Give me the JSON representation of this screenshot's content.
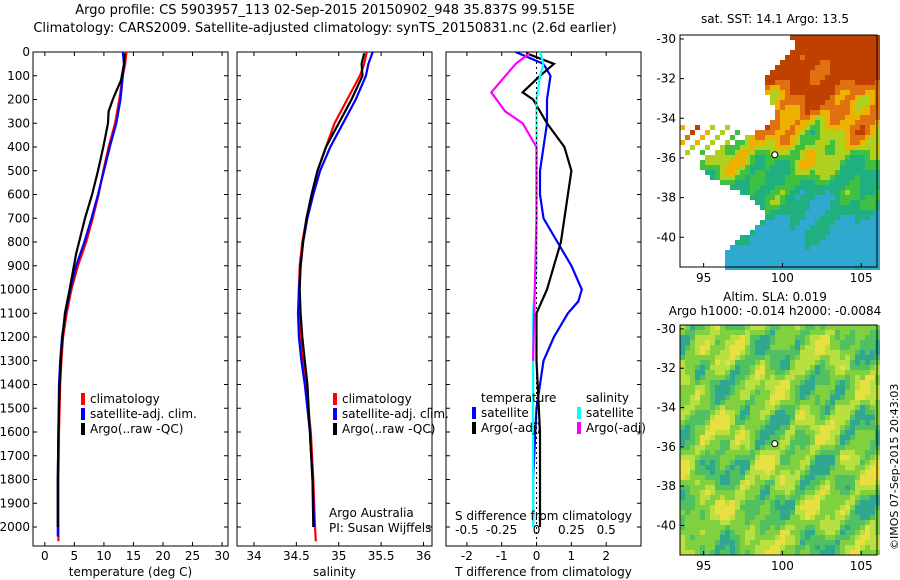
{
  "title": {
    "line1": "Argo profile: CS 5903957_113 02-Sep-2015 20150902_948 35.837S 99.515E",
    "line2": "Climatology: CARS2009. Satellite-adjusted climatology: synTS_20150831.nc (2.6d earlier)"
  },
  "credit": "©IMOS 07-Sep-2015 20:43:03",
  "colors": {
    "climatology": "#ff0000",
    "satellite": "#0000ff",
    "argo": "#000000",
    "sal_satellite": "#00ffff",
    "sal_argo": "#ff00ff"
  },
  "chart_data": [
    {
      "type": "line",
      "panel": "temperature",
      "xlabel": "temperature (deg C)",
      "xlim": [
        -2,
        31
      ],
      "xticks": [
        "0",
        "5",
        "10",
        "15",
        "20",
        "25",
        "30"
      ],
      "ylim": [
        0,
        2080
      ],
      "yticks": [
        "0",
        "100",
        "200",
        "300",
        "400",
        "500",
        "600",
        "700",
        "800",
        "900",
        "1000",
        "1100",
        "1200",
        "1300",
        "1400",
        "1500",
        "1600",
        "1700",
        "1800",
        "1900",
        "2000"
      ],
      "legend": [
        "climatology",
        "satellite-adj. clim.",
        "Argo(..raw -QC)"
      ],
      "series": [
        {
          "name": "climatology",
          "color": "#ff0000",
          "x": [
            13.8,
            13.6,
            13.2,
            12.6,
            11.9,
            10.8,
            9.9,
            9.1,
            8.1,
            7.0,
            5.6,
            4.5,
            3.7,
            3.1,
            2.8,
            2.6,
            2.5,
            2.4,
            2.3,
            2.3,
            2.3
          ],
          "y": [
            0,
            50,
            100,
            200,
            300,
            400,
            500,
            600,
            700,
            800,
            900,
            1000,
            1100,
            1200,
            1300,
            1400,
            1500,
            1600,
            1800,
            2000,
            2060
          ]
        },
        {
          "name": "satellite-adj. clim.",
          "color": "#0000ff",
          "x": [
            13.2,
            13.4,
            13.2,
            12.8,
            12.1,
            11.0,
            10.0,
            9.0,
            7.9,
            6.7,
            5.3,
            4.3,
            3.5,
            2.9,
            2.6,
            2.4,
            2.3,
            2.2,
            2.2,
            2.2
          ],
          "y": [
            0,
            50,
            100,
            200,
            300,
            400,
            500,
            600,
            700,
            800,
            900,
            1000,
            1100,
            1200,
            1300,
            1400,
            1600,
            1800,
            2000,
            2040
          ]
        },
        {
          "name": "Argo(..raw -QC)",
          "color": "#000000",
          "x": [
            13.5,
            13.4,
            12.9,
            12.0,
            11.5,
            10.8,
            10.7,
            9.9,
            9.0,
            8.0,
            6.8,
            5.3,
            4.2,
            3.4,
            2.8,
            2.5,
            2.3,
            2.2,
            2.2
          ],
          "y": [
            5,
            50,
            120,
            170,
            200,
            250,
            300,
            400,
            500,
            600,
            700,
            850,
            1000,
            1100,
            1250,
            1400,
            1600,
            1800,
            2000
          ]
        }
      ]
    },
    {
      "type": "line",
      "panel": "salinity",
      "xlabel": "salinity",
      "xlim": [
        33.8,
        36.1
      ],
      "xticks": [
        "34",
        "34.5",
        "35",
        "35.5",
        "36"
      ],
      "ylim": [
        0,
        2080
      ],
      "legend": [
        "climatology",
        "satellite-adj. clim.",
        "Argo(..raw -QC)"
      ],
      "annotation": [
        "Argo Australia",
        "PI: Susan Wijffels"
      ],
      "series": [
        {
          "name": "climatology",
          "color": "#ff0000",
          "x": [
            35.33,
            35.3,
            35.25,
            35.1,
            34.95,
            34.85,
            34.75,
            34.68,
            34.62,
            34.57,
            34.54,
            34.53,
            34.53,
            34.55,
            34.58,
            34.61,
            34.64,
            34.67,
            34.7,
            34.72,
            34.73
          ],
          "y": [
            0,
            50,
            100,
            200,
            300,
            400,
            500,
            600,
            700,
            800,
            900,
            1000,
            1100,
            1200,
            1300,
            1400,
            1500,
            1600,
            1800,
            2000,
            2060
          ]
        },
        {
          "name": "satellite-adj. clim.",
          "color": "#0000ff",
          "x": [
            35.4,
            35.35,
            35.32,
            35.2,
            35.05,
            34.9,
            34.78,
            34.7,
            34.63,
            34.58,
            34.55,
            34.53,
            34.52,
            34.53,
            34.56,
            34.6,
            34.63,
            34.66,
            34.69,
            34.71
          ],
          "y": [
            0,
            50,
            100,
            200,
            300,
            400,
            500,
            600,
            700,
            800,
            900,
            1000,
            1100,
            1200,
            1300,
            1400,
            1500,
            1600,
            1800,
            2000
          ]
        },
        {
          "name": "Argo(..raw -QC)",
          "color": "#000000",
          "x": [
            35.3,
            35.27,
            35.28,
            35.15,
            35.0,
            34.85,
            34.75,
            34.68,
            34.62,
            34.58,
            34.55,
            34.54,
            34.55,
            34.57,
            34.6,
            34.63,
            34.66,
            34.69,
            34.7
          ],
          "y": [
            5,
            50,
            100,
            200,
            300,
            400,
            500,
            600,
            700,
            800,
            900,
            1000,
            1100,
            1200,
            1300,
            1400,
            1600,
            1800,
            2000
          ]
        }
      ]
    },
    {
      "type": "line",
      "panel": "difference",
      "xlabel": "T difference from climatology",
      "xlabel_top": "S difference from climatology",
      "xlim": [
        -2.6,
        3.0
      ],
      "xticks": [
        "-2",
        "-1",
        "0",
        "1",
        "2"
      ],
      "xticks_top": [
        "-0.5",
        "-0.25",
        "0",
        "0.25",
        "0.5"
      ],
      "ylim": [
        0,
        2080
      ],
      "legend": {
        "temperature": [
          "satellite",
          "Argo(-adj)"
        ],
        "salinity": [
          "satellite",
          "Argo(-adj)"
        ]
      },
      "legend_headers": [
        "temperature",
        "salinity"
      ],
      "series": [
        {
          "name": "T satellite",
          "color": "#0000ff",
          "x": [
            -0.6,
            0.2,
            0.4,
            0.3,
            0.3,
            0.2,
            0.1,
            0.1,
            0.2,
            0.6,
            1.0,
            1.3,
            1.2,
            0.9,
            0.5,
            0.2,
            0.0,
            -0.1,
            -0.1
          ],
          "y": [
            0,
            50,
            100,
            200,
            300,
            400,
            500,
            600,
            700,
            800,
            900,
            1000,
            1050,
            1100,
            1200,
            1300,
            1500,
            1800,
            2000
          ]
        },
        {
          "name": "T Argo(-adj)",
          "color": "#000000",
          "x": [
            -0.3,
            0.5,
            0.1,
            -0.4,
            -0.1,
            0.3,
            0.8,
            1.0,
            0.9,
            0.8,
            0.7,
            0.5,
            0.3,
            0.0,
            0.0,
            0.1,
            0.1
          ],
          "y": [
            5,
            50,
            100,
            170,
            200,
            300,
            400,
            500,
            600,
            700,
            800,
            900,
            1000,
            1100,
            1300,
            1600,
            2000
          ]
        },
        {
          "name": "S satellite",
          "color": "#00ffff",
          "x": [
            0.1,
            0.2,
            0.1,
            0.0,
            0.0,
            0.0,
            0.0,
            0.0,
            -0.05,
            -0.1,
            -0.1,
            -0.1,
            -0.1,
            -0.1
          ],
          "y": [
            0,
            50,
            100,
            200,
            300,
            500,
            700,
            900,
            1000,
            1100,
            1300,
            1500,
            1800,
            2000
          ]
        },
        {
          "name": "S Argo(-adj)",
          "color": "#ff00ff",
          "x": [
            -0.2,
            -0.6,
            -1.3,
            -0.9,
            -0.4,
            0.0,
            0.0,
            -0.05,
            -0.1
          ],
          "y": [
            5,
            50,
            170,
            250,
            300,
            400,
            700,
            1000,
            1300
          ]
        }
      ]
    },
    {
      "type": "heatmap",
      "panel": "sst_map",
      "title": "sat. SST: 14.1  Argo: 13.5",
      "xticks": [
        "95",
        "100",
        "105"
      ],
      "yticks": [
        "-30",
        "-32",
        "-34",
        "-36",
        "-38",
        "-40"
      ],
      "xlim": [
        93.5,
        106
      ],
      "ylim": [
        -41.5,
        -29.8
      ]
    },
    {
      "type": "heatmap",
      "panel": "sla_map",
      "title": "Altim. SLA: 0.019",
      "subtitle": "Argo h1000: -0.014 h2000: -0.0084",
      "xticks": [
        "95",
        "100",
        "105"
      ],
      "yticks": [
        "-30",
        "-32",
        "-34",
        "-36",
        "-38",
        "-40"
      ],
      "xlim": [
        93.5,
        106
      ],
      "ylim": [
        -41.5,
        -29.8
      ]
    }
  ]
}
